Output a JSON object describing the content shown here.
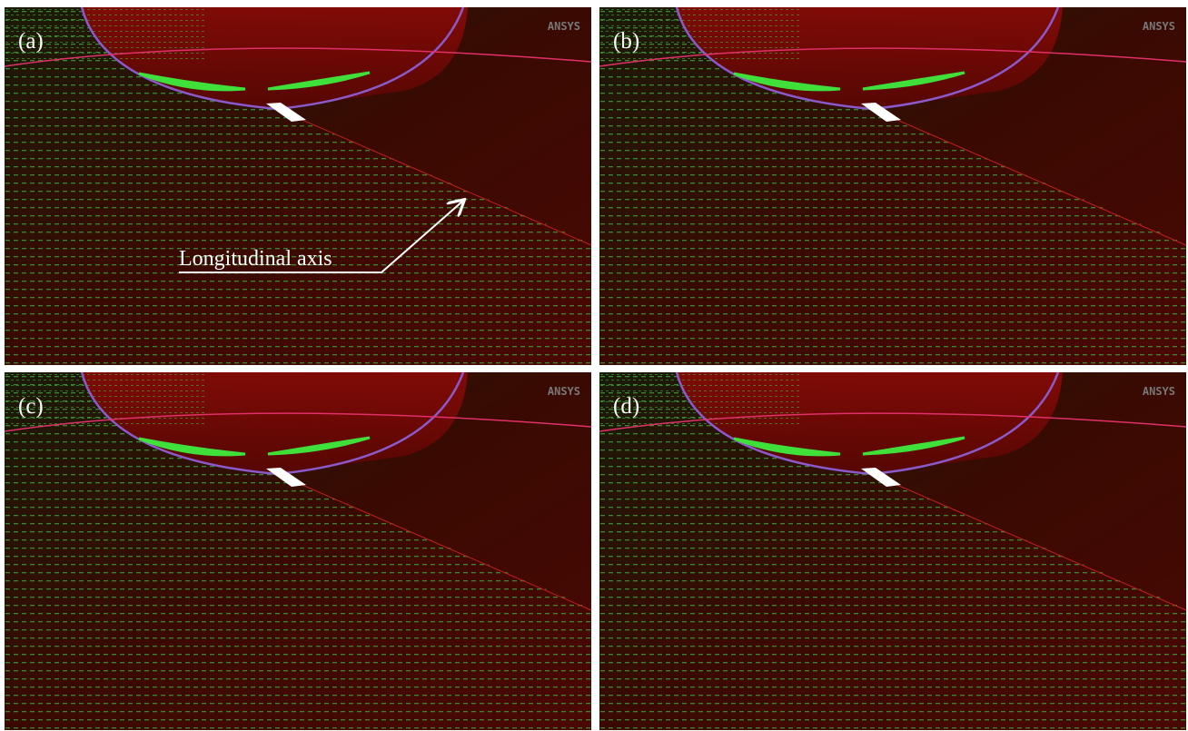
{
  "panels": [
    {
      "label": "(a)",
      "logo": "ANSYS"
    },
    {
      "label": "(b)",
      "logo": "ANSYS"
    },
    {
      "label": "(c)",
      "logo": "ANSYS"
    },
    {
      "label": "(d)",
      "logo": "ANSYS"
    }
  ],
  "annotation": "Longitudinal axis"
}
